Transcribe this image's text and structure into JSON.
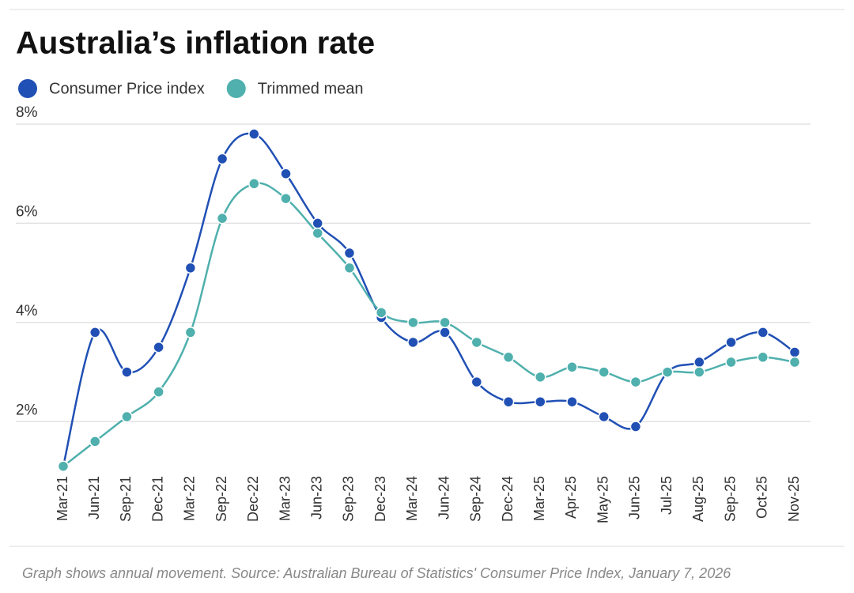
{
  "chart_data": {
    "type": "line",
    "title": "Australia’s inflation rate",
    "note": "Graph shows annual movement. Source:  Australian Bureau of Statistics' Consumer Price Index, January 7, 2026",
    "categories": [
      "Mar-21",
      "Jun-21",
      "Sep-21",
      "Dec-21",
      "Mar-22",
      "Sep-22",
      "Dec-22",
      "Mar-23",
      "Jun-23",
      "Sep-23",
      "Dec-23",
      "Mar-24",
      "Jun-24",
      "Sep-24",
      "Dec-24",
      "Mar-25",
      "Apr-25",
      "May-25",
      "Jun-25",
      "Jul-25",
      "Aug-25",
      "Sep-25",
      "Oct-25",
      "Nov-25"
    ],
    "series": [
      {
        "name": "Consumer Price index",
        "color": "#2150b5",
        "values": [
          1.1,
          3.8,
          3.0,
          3.5,
          5.1,
          7.3,
          7.8,
          7.0,
          6.0,
          5.4,
          4.1,
          3.6,
          3.8,
          2.8,
          2.4,
          2.4,
          2.4,
          2.1,
          1.9,
          3.0,
          3.2,
          3.6,
          3.8,
          3.4
        ]
      },
      {
        "name": "Trimmed mean",
        "color": "#4fb0ad",
        "values": [
          1.1,
          1.6,
          2.1,
          2.6,
          3.8,
          6.1,
          6.8,
          6.5,
          5.8,
          5.1,
          4.2,
          4.0,
          4.0,
          3.6,
          3.3,
          2.9,
          3.1,
          3.0,
          2.8,
          3.0,
          3.0,
          3.2,
          3.3,
          3.2
        ]
      }
    ],
    "ylim": [
      1,
      8
    ],
    "yticks": [
      {
        "value": 2,
        "label": "2%"
      },
      {
        "value": 4,
        "label": "4%"
      },
      {
        "value": 6,
        "label": "6%"
      },
      {
        "value": 8,
        "label": "8%"
      }
    ],
    "grid": true
  }
}
